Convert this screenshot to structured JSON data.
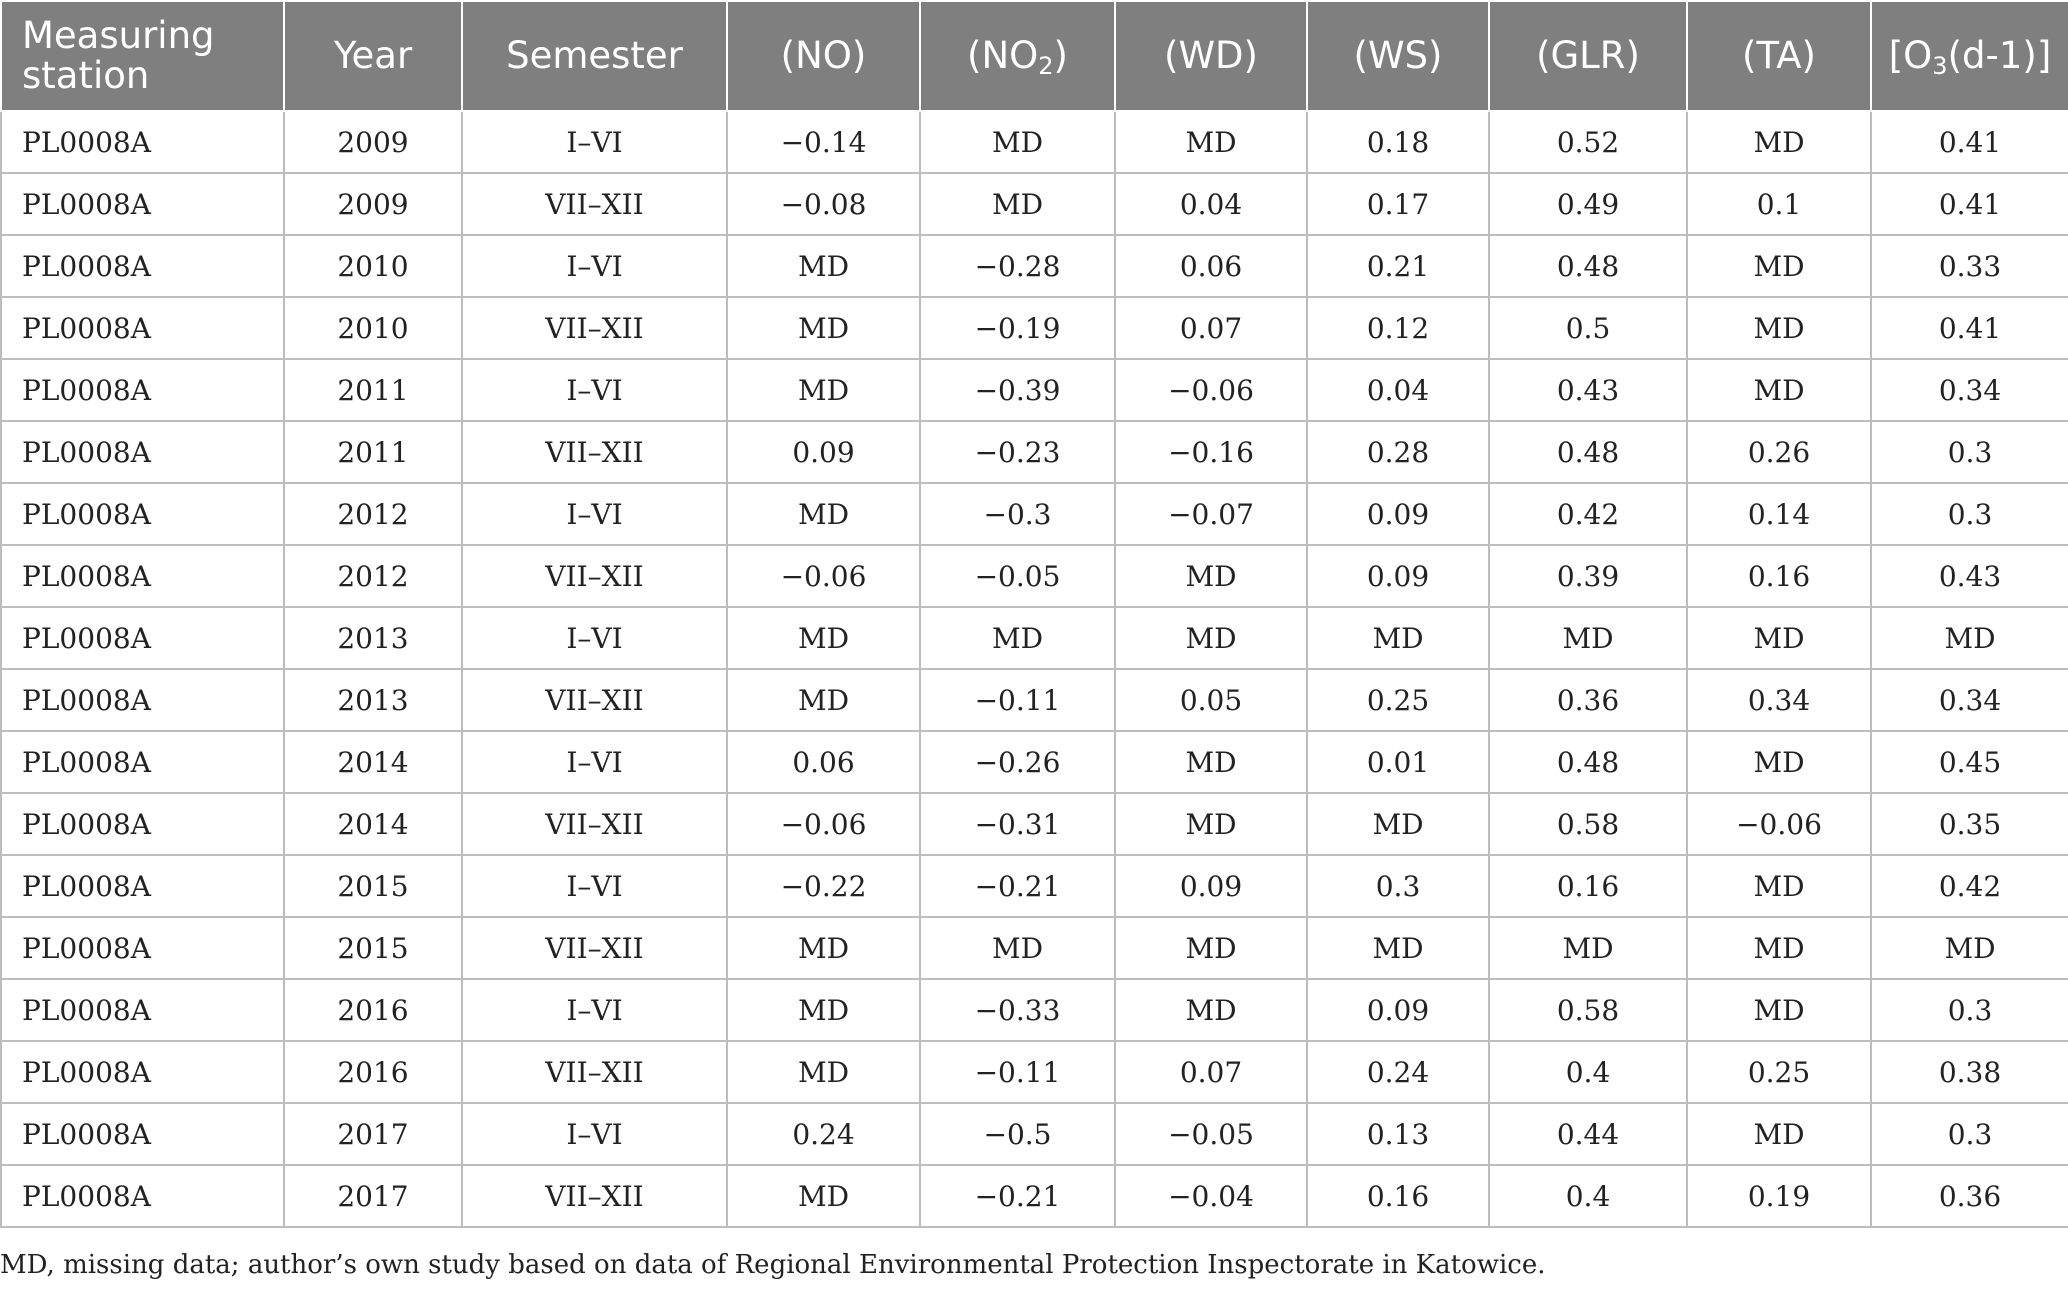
{
  "table": {
    "headers": {
      "station": "Measuring station",
      "year": "Year",
      "semester": "Semester",
      "no": "(NO)",
      "no2_pre": "(NO",
      "no2_sub": "2",
      "no2_post": ")",
      "wd": "(WD)",
      "ws": "(WS)",
      "glr": "(GLR)",
      "ta": "(TA)",
      "o3_pre": "[O",
      "o3_sub": "3",
      "o3_post": "(d-1)]"
    },
    "rows": [
      [
        "PL0008A",
        "2009",
        "I–VI",
        "−0.14",
        "MD",
        "MD",
        "0.18",
        "0.52",
        "MD",
        "0.41"
      ],
      [
        "PL0008A",
        "2009",
        "VII–XII",
        "−0.08",
        "MD",
        "0.04",
        "0.17",
        "0.49",
        "0.1",
        "0.41"
      ],
      [
        "PL0008A",
        "2010",
        "I–VI",
        "MD",
        "−0.28",
        "0.06",
        "0.21",
        "0.48",
        "MD",
        "0.33"
      ],
      [
        "PL0008A",
        "2010",
        "VII–XII",
        "MD",
        "−0.19",
        "0.07",
        "0.12",
        "0.5",
        "MD",
        "0.41"
      ],
      [
        "PL0008A",
        "2011",
        "I–VI",
        "MD",
        "−0.39",
        "−0.06",
        "0.04",
        "0.43",
        "MD",
        "0.34"
      ],
      [
        "PL0008A",
        "2011",
        "VII–XII",
        "0.09",
        "−0.23",
        "−0.16",
        "0.28",
        "0.48",
        "0.26",
        "0.3"
      ],
      [
        "PL0008A",
        "2012",
        "I–VI",
        "MD",
        "−0.3",
        "−0.07",
        "0.09",
        "0.42",
        "0.14",
        "0.3"
      ],
      [
        "PL0008A",
        "2012",
        "VII–XII",
        "−0.06",
        "−0.05",
        "MD",
        "0.09",
        "0.39",
        "0.16",
        "0.43"
      ],
      [
        "PL0008A",
        "2013",
        "I–VI",
        "MD",
        "MD",
        "MD",
        "MD",
        "MD",
        "MD",
        "MD"
      ],
      [
        "PL0008A",
        "2013",
        "VII–XII",
        "MD",
        "−0.11",
        "0.05",
        "0.25",
        "0.36",
        "0.34",
        "0.34"
      ],
      [
        "PL0008A",
        "2014",
        "I–VI",
        "0.06",
        "−0.26",
        "MD",
        "0.01",
        "0.48",
        "MD",
        "0.45"
      ],
      [
        "PL0008A",
        "2014",
        "VII–XII",
        "−0.06",
        "−0.31",
        "MD",
        "MD",
        "0.58",
        "−0.06",
        "0.35"
      ],
      [
        "PL0008A",
        "2015",
        "I–VI",
        "−0.22",
        "−0.21",
        "0.09",
        "0.3",
        "0.16",
        "MD",
        "0.42"
      ],
      [
        "PL0008A",
        "2015",
        "VII–XII",
        "MD",
        "MD",
        "MD",
        "MD",
        "MD",
        "MD",
        "MD"
      ],
      [
        "PL0008A",
        "2016",
        "I–VI",
        "MD",
        "−0.33",
        "MD",
        "0.09",
        "0.58",
        "MD",
        "0.3"
      ],
      [
        "PL0008A",
        "2016",
        "VII–XII",
        "MD",
        "−0.11",
        "0.07",
        "0.24",
        "0.4",
        "0.25",
        "0.38"
      ],
      [
        "PL0008A",
        "2017",
        "I–VI",
        "0.24",
        "−0.5",
        "−0.05",
        "0.13",
        "0.44",
        "MD",
        "0.3"
      ],
      [
        "PL0008A",
        "2017",
        "VII–XII",
        "MD",
        "−0.21",
        "−0.04",
        "0.16",
        "0.4",
        "0.19",
        "0.36"
      ]
    ]
  },
  "footnote": "MD, missing data; author’s own study based on data of Regional Environmental Protection Inspectorate in Katowice."
}
